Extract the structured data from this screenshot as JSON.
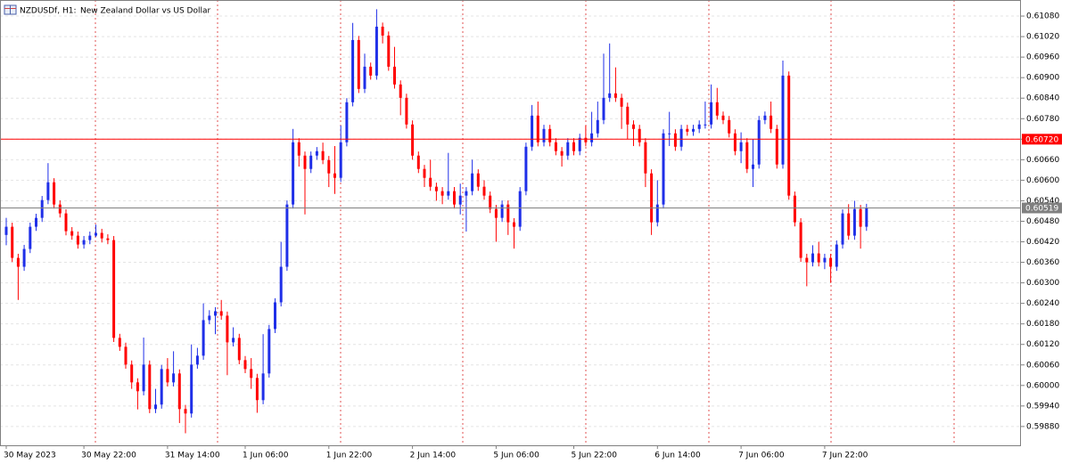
{
  "chart_data": {
    "type": "candlestick",
    "symbol": "NZDUSDf, H1:",
    "description": "New Zealand Dollar vs US Dollar",
    "up_color": "#1f2fe8",
    "down_color": "#ff0000",
    "grid": true,
    "ylim": [
      0.59825,
      0.61127
    ],
    "yticks": [
      {
        "value": 0.6108,
        "label": "0.61080"
      },
      {
        "value": 0.6102,
        "label": "0.61020"
      },
      {
        "value": 0.6096,
        "label": "0.60960"
      },
      {
        "value": 0.609,
        "label": "0.60900"
      },
      {
        "value": 0.6084,
        "label": "0.60840"
      },
      {
        "value": 0.6078,
        "label": "0.60780"
      },
      {
        "value": 0.6072,
        "label": "0.60720"
      },
      {
        "value": 0.6066,
        "label": "0.60660"
      },
      {
        "value": 0.606,
        "label": "0.60600"
      },
      {
        "value": 0.6054,
        "label": "0.60540"
      },
      {
        "value": 0.6048,
        "label": "0.60480"
      },
      {
        "value": 0.6042,
        "label": "0.60420"
      },
      {
        "value": 0.6036,
        "label": "0.60360"
      },
      {
        "value": 0.603,
        "label": "0.60300"
      },
      {
        "value": 0.6024,
        "label": "0.60240"
      },
      {
        "value": 0.6018,
        "label": "0.60180"
      },
      {
        "value": 0.6012,
        "label": "0.60120"
      },
      {
        "value": 0.6006,
        "label": "0.60060"
      },
      {
        "value": 0.6,
        "label": "0.60000"
      },
      {
        "value": 0.5994,
        "label": "0.59940"
      },
      {
        "value": 0.5988,
        "label": "0.59880"
      }
    ],
    "levels": [
      {
        "value": 0.6072,
        "label": "0.60720",
        "color": "#ff0000"
      },
      {
        "value": 0.60519,
        "label": "0.60519",
        "color": "#808080"
      }
    ],
    "categories": [
      "30 May 2023",
      null,
      null,
      null,
      null,
      null,
      null,
      null,
      null,
      null,
      null,
      null,
      null,
      "30 May 22:00",
      null,
      null,
      null,
      null,
      null,
      null,
      null,
      null,
      null,
      null,
      null,
      null,
      null,
      "31 May 14:00",
      null,
      null,
      null,
      null,
      null,
      null,
      null,
      null,
      null,
      null,
      null,
      null,
      "1 Jun 06:00",
      null,
      null,
      null,
      null,
      null,
      null,
      null,
      null,
      null,
      null,
      null,
      null,
      null,
      "1 Jun 22:00",
      null,
      null,
      null,
      null,
      null,
      null,
      null,
      null,
      null,
      null,
      null,
      null,
      null,
      "2 Jun 14:00",
      null,
      null,
      null,
      null,
      null,
      null,
      null,
      null,
      null,
      null,
      null,
      null,
      null,
      "5 Jun 06:00",
      null,
      null,
      null,
      null,
      null,
      null,
      null,
      null,
      null,
      null,
      null,
      null,
      "5 Jun 22:00",
      null,
      null,
      null,
      null,
      null,
      null,
      null,
      null,
      null,
      null,
      null,
      null,
      null,
      "6 Jun 14:00",
      null,
      null,
      null,
      null,
      null,
      null,
      null,
      null,
      null,
      null,
      null,
      null,
      null,
      "7 Jun 06:00",
      null,
      null,
      null,
      null,
      null,
      null,
      null,
      null,
      null,
      null,
      null,
      null,
      null,
      "7 Jun 22:00",
      null,
      null,
      null,
      null,
      null,
      null,
      null
    ],
    "candles": [
      [
        0.6044,
        0.6049,
        0.6041,
        0.60464
      ],
      [
        0.60464,
        0.60476,
        0.60361,
        0.60373
      ],
      [
        0.60373,
        0.60385,
        0.6025,
        0.60347
      ],
      [
        0.60347,
        0.60411,
        0.60335,
        0.60399
      ],
      [
        0.60399,
        0.60476,
        0.60387,
        0.60464
      ],
      [
        0.60464,
        0.60502,
        0.60452,
        0.6049
      ],
      [
        0.6049,
        0.60554,
        0.60478,
        0.60542
      ],
      [
        0.60542,
        0.6065,
        0.6053,
        0.60594
      ],
      [
        0.60594,
        0.60606,
        0.60517,
        0.60529
      ],
      [
        0.60529,
        0.60541,
        0.60491,
        0.60503
      ],
      [
        0.60503,
        0.60515,
        0.60439,
        0.60451
      ],
      [
        0.60451,
        0.60463,
        0.60426,
        0.60438
      ],
      [
        0.60438,
        0.6045,
        0.604,
        0.60412
      ],
      [
        0.60412,
        0.60437,
        0.604,
        0.60425
      ],
      [
        0.60425,
        0.6045,
        0.60413,
        0.60438
      ],
      [
        0.60438,
        0.6047,
        0.60434,
        0.60446
      ],
      [
        0.60446,
        0.60458,
        0.60418,
        0.6043
      ],
      [
        0.6043,
        0.60442,
        0.60413,
        0.60425
      ],
      [
        0.60425,
        0.60437,
        0.60127,
        0.60139
      ],
      [
        0.60139,
        0.60151,
        0.60101,
        0.60113
      ],
      [
        0.60113,
        0.60125,
        0.60049,
        0.60061
      ],
      [
        0.60061,
        0.60073,
        0.5999,
        0.60009
      ],
      [
        0.60009,
        0.60021,
        0.5993,
        0.59983
      ],
      [
        0.59983,
        0.6014,
        0.59971,
        0.60061
      ],
      [
        0.60061,
        0.60073,
        0.59919,
        0.59931
      ],
      [
        0.59931,
        0.5999,
        0.59919,
        0.59944
      ],
      [
        0.59944,
        0.6006,
        0.59932,
        0.60048
      ],
      [
        0.60048,
        0.6008,
        0.59997,
        0.60009
      ],
      [
        0.60009,
        0.601,
        0.59997,
        0.60035
      ],
      [
        0.60035,
        0.60047,
        0.5989,
        0.59931
      ],
      [
        0.59931,
        0.59943,
        0.5986,
        0.59918
      ],
      [
        0.59918,
        0.6012,
        0.59906,
        0.60061
      ],
      [
        0.60061,
        0.6011,
        0.60049,
        0.60087
      ],
      [
        0.60087,
        0.6024,
        0.60075,
        0.60191
      ],
      [
        0.60191,
        0.6022,
        0.60179,
        0.60204
      ],
      [
        0.60204,
        0.60229,
        0.6015,
        0.60217
      ],
      [
        0.60217,
        0.6025,
        0.60192,
        0.60204
      ],
      [
        0.60204,
        0.60216,
        0.6003,
        0.60126
      ],
      [
        0.60126,
        0.6017,
        0.60114,
        0.60139
      ],
      [
        0.60139,
        0.60151,
        0.60062,
        0.60074
      ],
      [
        0.60074,
        0.60086,
        0.60036,
        0.60048
      ],
      [
        0.60048,
        0.6008,
        0.5999,
        0.60022
      ],
      [
        0.60022,
        0.60034,
        0.5992,
        0.59957
      ],
      [
        0.59957,
        0.6015,
        0.59945,
        0.60035
      ],
      [
        0.60035,
        0.60177,
        0.60023,
        0.60165
      ],
      [
        0.60165,
        0.60255,
        0.60153,
        0.60243
      ],
      [
        0.60243,
        0.6042,
        0.60231,
        0.60347
      ],
      [
        0.60347,
        0.60541,
        0.60335,
        0.60529
      ],
      [
        0.60529,
        0.6075,
        0.60517,
        0.60711
      ],
      [
        0.60711,
        0.60723,
        0.6064,
        0.60672
      ],
      [
        0.60672,
        0.60684,
        0.605,
        0.60633
      ],
      [
        0.60633,
        0.60684,
        0.60621,
        0.60672
      ],
      [
        0.60672,
        0.60697,
        0.6066,
        0.60685
      ],
      [
        0.60685,
        0.6071,
        0.60647,
        0.60659
      ],
      [
        0.60659,
        0.60671,
        0.6058,
        0.6062
      ],
      [
        0.6062,
        0.607,
        0.6056,
        0.60607
      ],
      [
        0.60607,
        0.6076,
        0.60595,
        0.60711
      ],
      [
        0.60711,
        0.6084,
        0.60699,
        0.60828
      ],
      [
        0.60828,
        0.6106,
        0.60816,
        0.6101
      ],
      [
        0.6101,
        0.61022,
        0.60855,
        0.60867
      ],
      [
        0.60867,
        0.6097,
        0.60855,
        0.60932
      ],
      [
        0.60932,
        0.60944,
        0.60894,
        0.60906
      ],
      [
        0.60906,
        0.611,
        0.60894,
        0.61049
      ],
      [
        0.61049,
        0.61061,
        0.61,
        0.61023
      ],
      [
        0.61023,
        0.61035,
        0.6092,
        0.60932
      ],
      [
        0.60932,
        0.6099,
        0.60868,
        0.6088
      ],
      [
        0.6088,
        0.60892,
        0.6079,
        0.60841
      ],
      [
        0.60841,
        0.60853,
        0.60751,
        0.60763
      ],
      [
        0.60763,
        0.60775,
        0.6066,
        0.60672
      ],
      [
        0.60672,
        0.60684,
        0.60621,
        0.60633
      ],
      [
        0.60633,
        0.60645,
        0.6058,
        0.60607
      ],
      [
        0.60607,
        0.6066,
        0.60569,
        0.60581
      ],
      [
        0.60581,
        0.60593,
        0.6054,
        0.60568
      ],
      [
        0.60568,
        0.6058,
        0.6053,
        0.60555
      ],
      [
        0.60555,
        0.6068,
        0.60543,
        0.60568
      ],
      [
        0.60568,
        0.6058,
        0.60517,
        0.60529
      ],
      [
        0.60529,
        0.6059,
        0.605,
        0.60555
      ],
      [
        0.60555,
        0.6058,
        0.6045,
        0.60568
      ],
      [
        0.60568,
        0.6066,
        0.60556,
        0.6062
      ],
      [
        0.6062,
        0.60632,
        0.60569,
        0.60581
      ],
      [
        0.60581,
        0.606,
        0.60543,
        0.60555
      ],
      [
        0.60555,
        0.60567,
        0.60504,
        0.60516
      ],
      [
        0.60516,
        0.60528,
        0.6042,
        0.6049
      ],
      [
        0.6049,
        0.60541,
        0.60478,
        0.60529
      ],
      [
        0.60529,
        0.60541,
        0.6044,
        0.60477
      ],
      [
        0.60477,
        0.60489,
        0.604,
        0.60464
      ],
      [
        0.60464,
        0.6058,
        0.60452,
        0.60568
      ],
      [
        0.60568,
        0.6071,
        0.60556,
        0.60698
      ],
      [
        0.60698,
        0.6082,
        0.60686,
        0.60789
      ],
      [
        0.60789,
        0.6083,
        0.60699,
        0.60711
      ],
      [
        0.60711,
        0.60762,
        0.60699,
        0.6075
      ],
      [
        0.6075,
        0.60762,
        0.60699,
        0.60711
      ],
      [
        0.60711,
        0.60723,
        0.60673,
        0.60685
      ],
      [
        0.60685,
        0.60697,
        0.6064,
        0.60672
      ],
      [
        0.60672,
        0.60723,
        0.6066,
        0.60711
      ],
      [
        0.60711,
        0.60723,
        0.60673,
        0.60685
      ],
      [
        0.60685,
        0.60736,
        0.60673,
        0.60724
      ],
      [
        0.60724,
        0.6076,
        0.60699,
        0.60711
      ],
      [
        0.60711,
        0.608,
        0.60699,
        0.60737
      ],
      [
        0.60737,
        0.6083,
        0.60725,
        0.60776
      ],
      [
        0.60776,
        0.6097,
        0.60764,
        0.60841
      ],
      [
        0.60841,
        0.61,
        0.60829,
        0.60854
      ],
      [
        0.60854,
        0.6093,
        0.60829,
        0.60841
      ],
      [
        0.60841,
        0.60853,
        0.6075,
        0.60815
      ],
      [
        0.60815,
        0.60827,
        0.6072,
        0.60763
      ],
      [
        0.60763,
        0.60775,
        0.607,
        0.6075
      ],
      [
        0.6075,
        0.60762,
        0.60699,
        0.60711
      ],
      [
        0.60711,
        0.60723,
        0.6058,
        0.6062
      ],
      [
        0.6062,
        0.60632,
        0.6044,
        0.60477
      ],
      [
        0.60477,
        0.606,
        0.60465,
        0.60529
      ],
      [
        0.60529,
        0.60749,
        0.60517,
        0.60737
      ],
      [
        0.60737,
        0.608,
        0.607,
        0.60737
      ],
      [
        0.60737,
        0.60749,
        0.60686,
        0.60698
      ],
      [
        0.60698,
        0.60762,
        0.60686,
        0.6075
      ],
      [
        0.6075,
        0.60762,
        0.6073,
        0.60742
      ],
      [
        0.60742,
        0.60762,
        0.6073,
        0.6075
      ],
      [
        0.6075,
        0.60775,
        0.60738,
        0.60763
      ],
      [
        0.60763,
        0.6083,
        0.60751,
        0.60763
      ],
      [
        0.60763,
        0.6088,
        0.60751,
        0.60828
      ],
      [
        0.60828,
        0.6087,
        0.60777,
        0.60789
      ],
      [
        0.60789,
        0.60801,
        0.60764,
        0.60776
      ],
      [
        0.60776,
        0.60788,
        0.60725,
        0.60737
      ],
      [
        0.60737,
        0.60749,
        0.60673,
        0.60685
      ],
      [
        0.60685,
        0.6074,
        0.6065,
        0.60711
      ],
      [
        0.60711,
        0.60723,
        0.60621,
        0.60633
      ],
      [
        0.60633,
        0.6072,
        0.6058,
        0.60646
      ],
      [
        0.60646,
        0.60788,
        0.60634,
        0.60776
      ],
      [
        0.60776,
        0.60801,
        0.60764,
        0.60789
      ],
      [
        0.60789,
        0.6083,
        0.60738,
        0.6075
      ],
      [
        0.6075,
        0.60762,
        0.60634,
        0.60646
      ],
      [
        0.60646,
        0.6095,
        0.60634,
        0.60906
      ],
      [
        0.60906,
        0.60918,
        0.60543,
        0.60555
      ],
      [
        0.60555,
        0.60567,
        0.60465,
        0.60477
      ],
      [
        0.60477,
        0.60489,
        0.60361,
        0.60373
      ],
      [
        0.60373,
        0.60385,
        0.6029,
        0.6036
      ],
      [
        0.6036,
        0.6041,
        0.60348,
        0.60386
      ],
      [
        0.60386,
        0.6042,
        0.60348,
        0.6036
      ],
      [
        0.6036,
        0.60385,
        0.6034,
        0.60373
      ],
      [
        0.60373,
        0.60385,
        0.603,
        0.60347
      ],
      [
        0.60347,
        0.60424,
        0.60335,
        0.60412
      ],
      [
        0.60412,
        0.60515,
        0.604,
        0.60503
      ],
      [
        0.60503,
        0.6053,
        0.60426,
        0.60438
      ],
      [
        0.60438,
        0.6054,
        0.60426,
        0.60516
      ],
      [
        0.60516,
        0.60528,
        0.604,
        0.60464
      ],
      [
        0.60464,
        0.60531,
        0.60452,
        0.60519
      ]
    ]
  }
}
